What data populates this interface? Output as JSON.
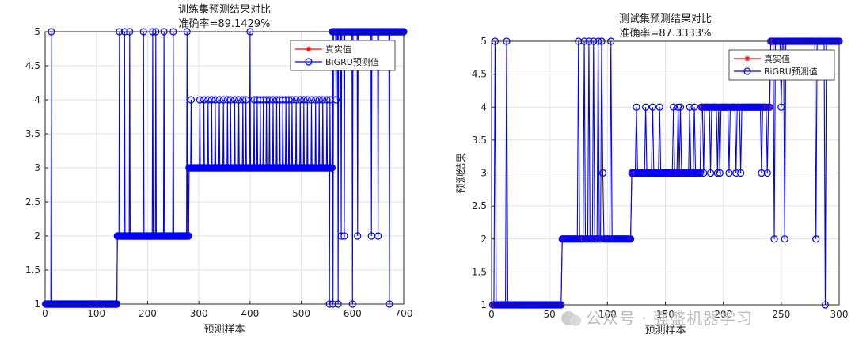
{
  "watermark": "公众号 · 强盛机器学习",
  "chart_data": [
    {
      "type": "line",
      "title": "训练集预测结果对比",
      "subtitle": "准确率=89.1429%",
      "xlabel": "预测样本",
      "ylabel": "",
      "xlim": [
        0,
        700
      ],
      "ylim": [
        1,
        5
      ],
      "xticks": [
        0,
        100,
        200,
        300,
        400,
        500,
        600,
        700
      ],
      "yticks": [
        1,
        1.5,
        2,
        2.5,
        3,
        3.5,
        4,
        4.5,
        5
      ],
      "grid": true,
      "legend_position": "top-right",
      "series": [
        {
          "name": "真实值",
          "color": "#ff0000",
          "marker": "star",
          "segments": [
            [
              1,
              140,
              1
            ],
            [
              141,
              280,
              2
            ],
            [
              281,
              560,
              3
            ],
            [
              561,
              700,
              5
            ]
          ]
        },
        {
          "name": "BiGRU预测值",
          "color": "#0000ff",
          "marker": "circle",
          "segments": [
            [
              1,
              140,
              1
            ],
            [
              141,
              280,
              2
            ],
            [
              281,
              560,
              3
            ],
            [
              561,
              700,
              5
            ]
          ],
          "outliers": [
            [
              12,
              5
            ],
            [
              145,
              5
            ],
            [
              155,
              5
            ],
            [
              165,
              5
            ],
            [
              192,
              5
            ],
            [
              210,
              5
            ],
            [
              216,
              5
            ],
            [
              232,
              5
            ],
            [
              250,
              5
            ],
            [
              277,
              5
            ],
            [
              285,
              4
            ],
            [
              302,
              4
            ],
            [
              310,
              4
            ],
            [
              318,
              4
            ],
            [
              325,
              4
            ],
            [
              332,
              4
            ],
            [
              340,
              4
            ],
            [
              348,
              4
            ],
            [
              356,
              4
            ],
            [
              362,
              4
            ],
            [
              370,
              4
            ],
            [
              378,
              4
            ],
            [
              386,
              4
            ],
            [
              392,
              4
            ],
            [
              400,
              5
            ],
            [
              408,
              4
            ],
            [
              414,
              4
            ],
            [
              420,
              4
            ],
            [
              426,
              4
            ],
            [
              432,
              4
            ],
            [
              438,
              4
            ],
            [
              445,
              4
            ],
            [
              452,
              4
            ],
            [
              458,
              4
            ],
            [
              464,
              4
            ],
            [
              470,
              4
            ],
            [
              476,
              4
            ],
            [
              482,
              4
            ],
            [
              490,
              4
            ],
            [
              498,
              4
            ],
            [
              505,
              4
            ],
            [
              512,
              4
            ],
            [
              520,
              4
            ],
            [
              528,
              4
            ],
            [
              535,
              4
            ],
            [
              542,
              4
            ],
            [
              550,
              4
            ],
            [
              556,
              4
            ],
            [
              555,
              1
            ],
            [
              562,
              1
            ],
            [
              568,
              4
            ],
            [
              572,
              1
            ],
            [
              578,
              2
            ],
            [
              584,
              2
            ],
            [
              600,
              1
            ],
            [
              610,
              2
            ],
            [
              637,
              2
            ],
            [
              650,
              2
            ],
            [
              672,
              1
            ]
          ]
        }
      ]
    },
    {
      "type": "line",
      "title": "测试集预测结果对比",
      "subtitle": "准确率=87.3333%",
      "xlabel": "预测样本",
      "ylabel": "预测结果",
      "xlim": [
        0,
        300
      ],
      "ylim": [
        1,
        5
      ],
      "xticks": [
        0,
        50,
        100,
        150,
        200,
        250,
        300
      ],
      "yticks": [
        1,
        1.5,
        2,
        2.5,
        3,
        3.5,
        4,
        4.5,
        5
      ],
      "grid": true,
      "legend_position": "top-right",
      "series": [
        {
          "name": "真实值",
          "color": "#ff0000",
          "marker": "star",
          "segments": [
            [
              1,
              60,
              1
            ],
            [
              61,
              120,
              2
            ],
            [
              121,
              180,
              3
            ],
            [
              181,
              240,
              4
            ],
            [
              241,
              300,
              5
            ]
          ]
        },
        {
          "name": "BiGRU预测值",
          "color": "#0000ff",
          "marker": "circle",
          "segments": [
            [
              1,
              60,
              1
            ],
            [
              61,
              120,
              2
            ],
            [
              121,
              180,
              3
            ],
            [
              181,
              240,
              4
            ],
            [
              241,
              300,
              5
            ]
          ],
          "outliers": [
            [
              3,
              5
            ],
            [
              13,
              5
            ],
            [
              75,
              5
            ],
            [
              80,
              5
            ],
            [
              84,
              5
            ],
            [
              88,
              5
            ],
            [
              92,
              5
            ],
            [
              95,
              5
            ],
            [
              96,
              3
            ],
            [
              103,
              5
            ],
            [
              125,
              4
            ],
            [
              133,
              4
            ],
            [
              139,
              4
            ],
            [
              145,
              4
            ],
            [
              157,
              4
            ],
            [
              161,
              4
            ],
            [
              163,
              4
            ],
            [
              171,
              4
            ],
            [
              175,
              4
            ],
            [
              183,
              3
            ],
            [
              189,
              3
            ],
            [
              195,
              3
            ],
            [
              197,
              3
            ],
            [
              205,
              3
            ],
            [
              211,
              3
            ],
            [
              215,
              3
            ],
            [
              233,
              3
            ],
            [
              238,
              3
            ],
            [
              244,
              2
            ],
            [
              250,
              4
            ],
            [
              253,
              2
            ],
            [
              280,
              2
            ],
            [
              288,
              1
            ],
            [
              290,
              5
            ]
          ]
        }
      ]
    }
  ]
}
